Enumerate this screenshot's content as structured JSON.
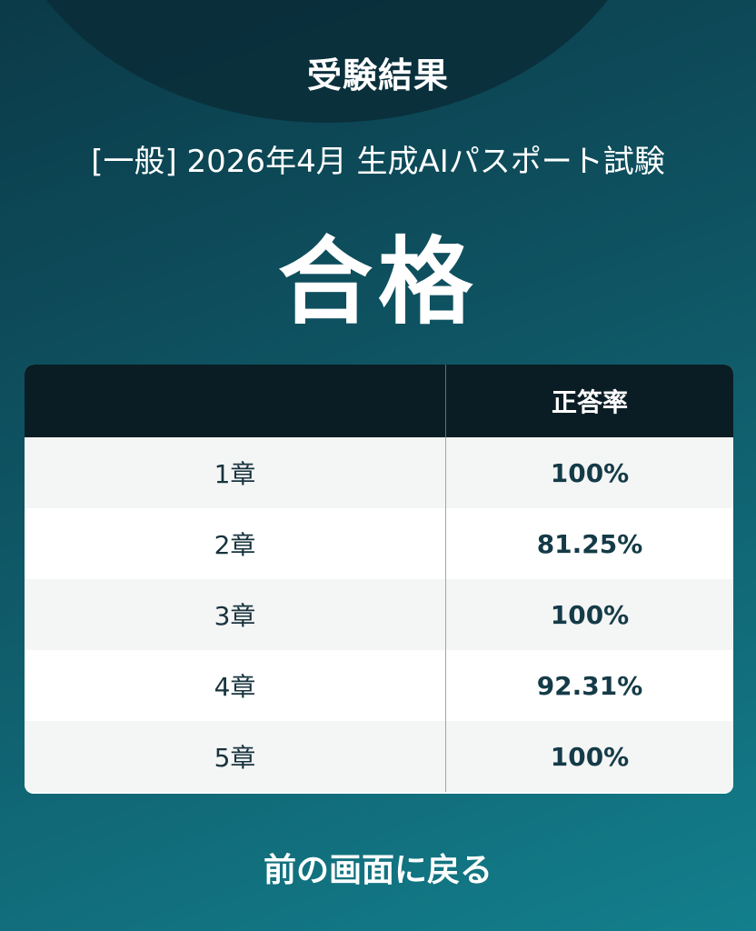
{
  "header": {
    "title": "受験結果"
  },
  "exam": {
    "name": "[一般] 2026年4月 生成AIパスポート試験"
  },
  "result": {
    "status": "合格"
  },
  "score_table": {
    "header": {
      "chapter": "",
      "rate": "正答率"
    },
    "rows": [
      {
        "chapter": "1章",
        "rate": "100%"
      },
      {
        "chapter": "2章",
        "rate": "81.25%"
      },
      {
        "chapter": "3章",
        "rate": "100%"
      },
      {
        "chapter": "4章",
        "rate": "92.31%"
      },
      {
        "chapter": "5章",
        "rate": "100%"
      }
    ]
  },
  "back_link": {
    "label": "前の画面に戻る"
  },
  "colors": {
    "background": "#0f5665",
    "table_header": "#0a1d24",
    "value_text": "#143b47"
  }
}
